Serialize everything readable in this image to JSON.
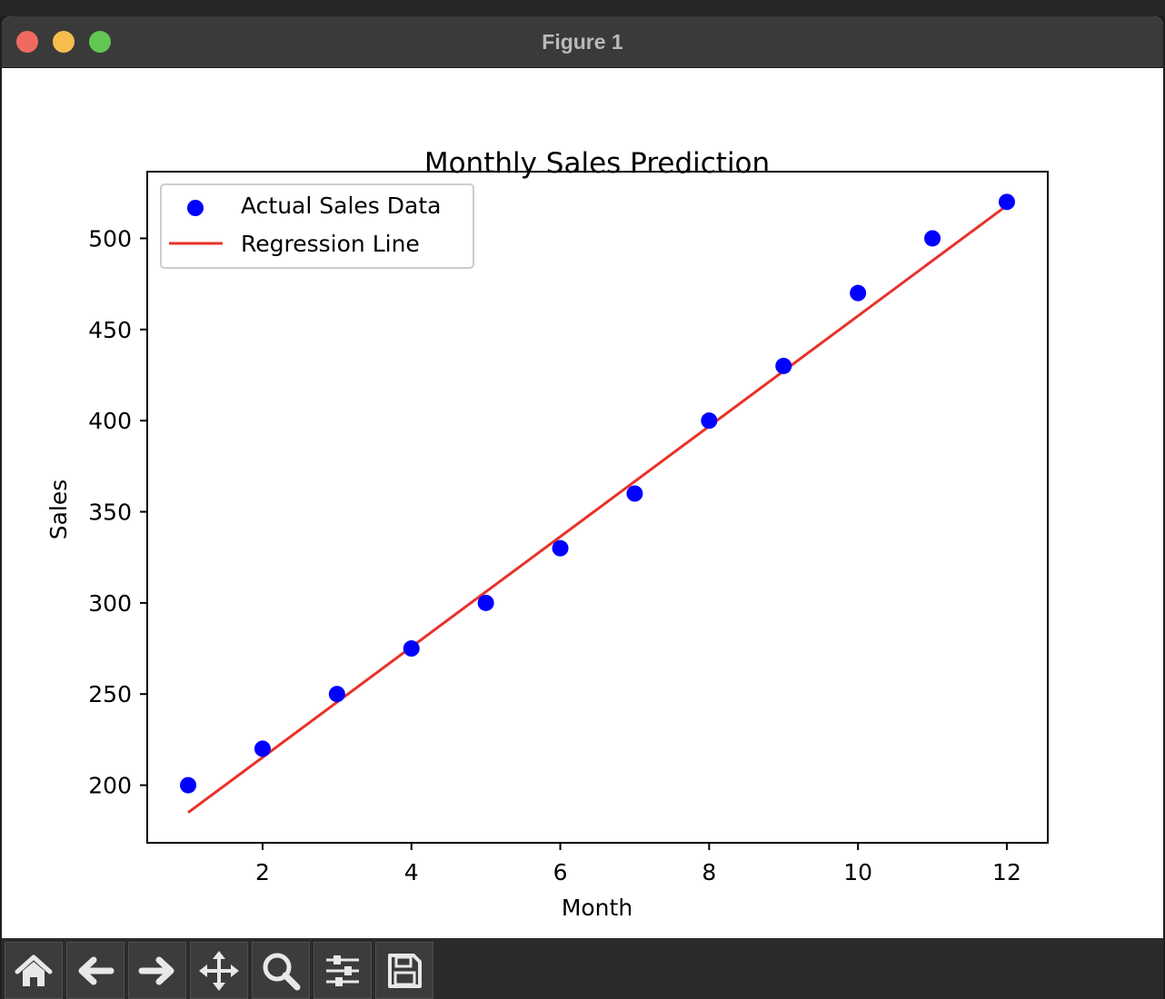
{
  "window": {
    "title": "Figure 1"
  },
  "toolbar": {
    "buttons": [
      {
        "name": "home-button",
        "icon": "home-icon"
      },
      {
        "name": "back-button",
        "icon": "arrow-left-icon"
      },
      {
        "name": "forward-button",
        "icon": "arrow-right-icon"
      },
      {
        "name": "pan-button",
        "icon": "move-icon"
      },
      {
        "name": "zoom-button",
        "icon": "magnifier-icon"
      },
      {
        "name": "configure-subplots-button",
        "icon": "sliders-icon"
      },
      {
        "name": "save-button",
        "icon": "floppy-disk-icon"
      }
    ]
  },
  "chart_data": {
    "type": "scatter",
    "title": "Monthly Sales Prediction",
    "xlabel": "Month",
    "ylabel": "Sales",
    "xlim": [
      0.45,
      12.55
    ],
    "ylim": [
      168.4,
      536.6
    ],
    "xticks": [
      2,
      4,
      6,
      8,
      10,
      12
    ],
    "yticks": [
      200,
      250,
      300,
      350,
      400,
      450,
      500
    ],
    "grid": false,
    "legend_position": "upper left",
    "series": [
      {
        "name": "Actual Sales Data",
        "kind": "scatter",
        "color": "#0000ff",
        "x": [
          1,
          2,
          3,
          4,
          5,
          6,
          7,
          8,
          9,
          10,
          11,
          12
        ],
        "y": [
          200,
          220,
          250,
          275,
          300,
          330,
          360,
          400,
          430,
          470,
          500,
          520
        ]
      },
      {
        "name": "Regression Line",
        "kind": "line",
        "color": "#e8312a",
        "x": [
          1,
          12
        ],
        "y": [
          185,
          518
        ]
      }
    ]
  }
}
